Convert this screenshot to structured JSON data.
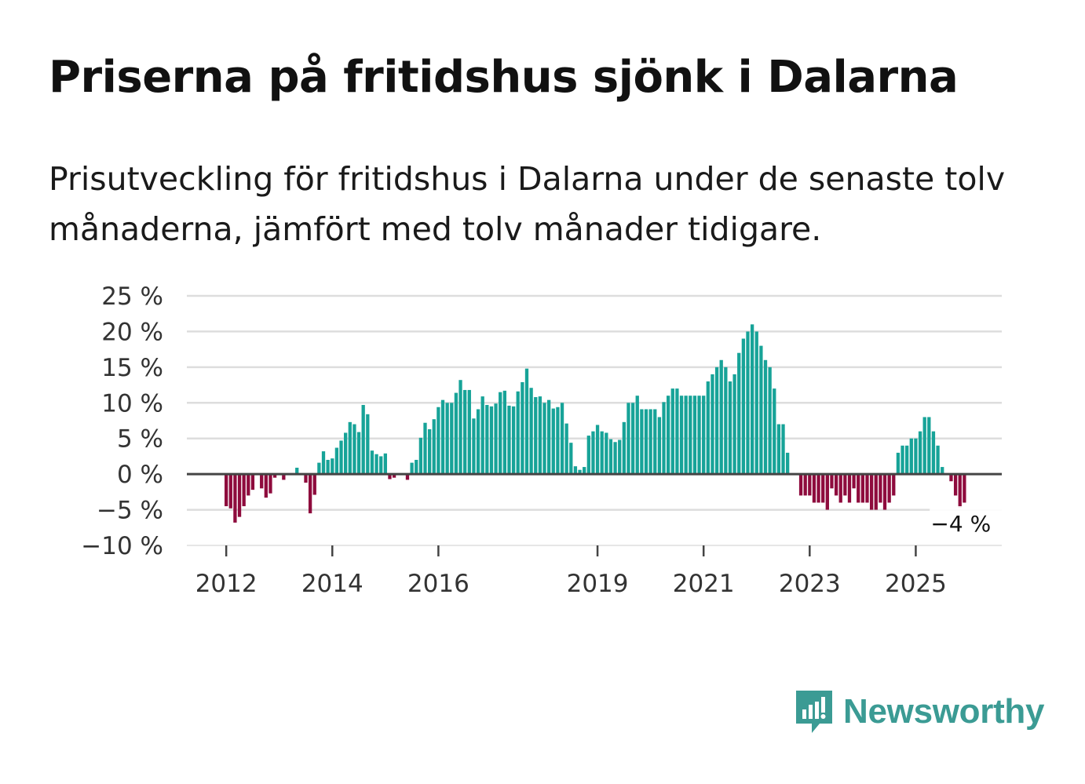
{
  "title": "Priserna på fritidshus sjönk i Dalarna",
  "subtitle": "Prisutveckling för fritidshus i Dalarna under de senaste tolv månaderna, jämfört med tolv månader tidigare.",
  "brand": {
    "name": "Newsworthy",
    "icon": "newsworthy-logo-icon",
    "color": "#3b9b94"
  },
  "colors": {
    "positive": "#17a398",
    "negative": "#8e0b3d",
    "grid": "#dddddd",
    "zero_line": "#444444"
  },
  "chart_data": {
    "type": "bar",
    "title": "Priserna på fritidshus sjönk i Dalarna",
    "xlabel": "",
    "ylabel": "",
    "ylim": [
      -10,
      25
    ],
    "yticks": [
      25,
      20,
      15,
      10,
      5,
      0,
      -5,
      -10
    ],
    "ytick_labels": [
      "25 %",
      "20 %",
      "15 %",
      "10 %",
      "5 %",
      "0 %",
      "−5 %",
      "−10 %"
    ],
    "xticks": [
      {
        "label": "2012",
        "index": 0
      },
      {
        "label": "2014",
        "index": 24
      },
      {
        "label": "2016",
        "index": 48
      },
      {
        "label": "2019",
        "index": 84
      },
      {
        "label": "2021",
        "index": 108
      },
      {
        "label": "2023",
        "index": 132
      },
      {
        "label": "2025",
        "index": 156
      }
    ],
    "start": "2012-01",
    "end": "2025-12",
    "grid": true,
    "end_label": "−4 %",
    "values": [
      -4.5,
      -4.8,
      -6.8,
      -6.0,
      -4.5,
      -3.0,
      -2.2,
      0,
      -2.0,
      -3.3,
      -2.7,
      -0.5,
      0,
      -0.8,
      0,
      0,
      0.9,
      0,
      -1.2,
      -5.5,
      -2.9,
      1.6,
      3.2,
      2.0,
      2.2,
      3.7,
      4.7,
      5.8,
      7.3,
      7.0,
      5.9,
      9.7,
      8.4,
      3.3,
      2.8,
      2.5,
      2.9,
      -0.7,
      -0.5,
      0,
      0,
      -0.8,
      1.6,
      2.0,
      5.1,
      7.2,
      6.3,
      7.7,
      9.4,
      10.4,
      10.0,
      10.0,
      11.4,
      13.2,
      11.8,
      11.8,
      7.8,
      9.1,
      10.9,
      9.7,
      9.5,
      9.9,
      11.5,
      11.7,
      9.6,
      9.5,
      11.6,
      12.9,
      14.8,
      12.1,
      10.8,
      10.9,
      10.0,
      10.4,
      9.2,
      9.4,
      10.0,
      7.1,
      4.4,
      1.1,
      0.6,
      1.0,
      5.4,
      6.0,
      6.9,
      6.0,
      5.8,
      4.9,
      4.5,
      4.8,
      7.3,
      10.0,
      10.0,
      11.0,
      9.1,
      9.1,
      9.1,
      9.1,
      8.0,
      10.1,
      11.0,
      12.0,
      12.0,
      11.0,
      11.0,
      11.0,
      11.0,
      11.0,
      11.0,
      13.0,
      14.0,
      15.0,
      16.0,
      15.0,
      13.0,
      14.0,
      17.0,
      19.0,
      20.0,
      21.0,
      20.0,
      18.0,
      16.0,
      15.0,
      12.0,
      7.0,
      7.0,
      3.0,
      0,
      0,
      -3.0,
      -3.0,
      -3.0,
      -4.0,
      -4.0,
      -4.0,
      -5.0,
      -2.0,
      -3.0,
      -4.0,
      -3.0,
      -4.0,
      -2.0,
      -4.0,
      -4.0,
      -4.0,
      -5.0,
      -5.0,
      -4.0,
      -5.0,
      -4.0,
      -3.0,
      3.0,
      4.0,
      4.0,
      5.0,
      5.0,
      6.0,
      8.0,
      8.0,
      6.0,
      4.0,
      1.0,
      0,
      -1.0,
      -3.0,
      -4.7,
      -4.0
    ]
  }
}
